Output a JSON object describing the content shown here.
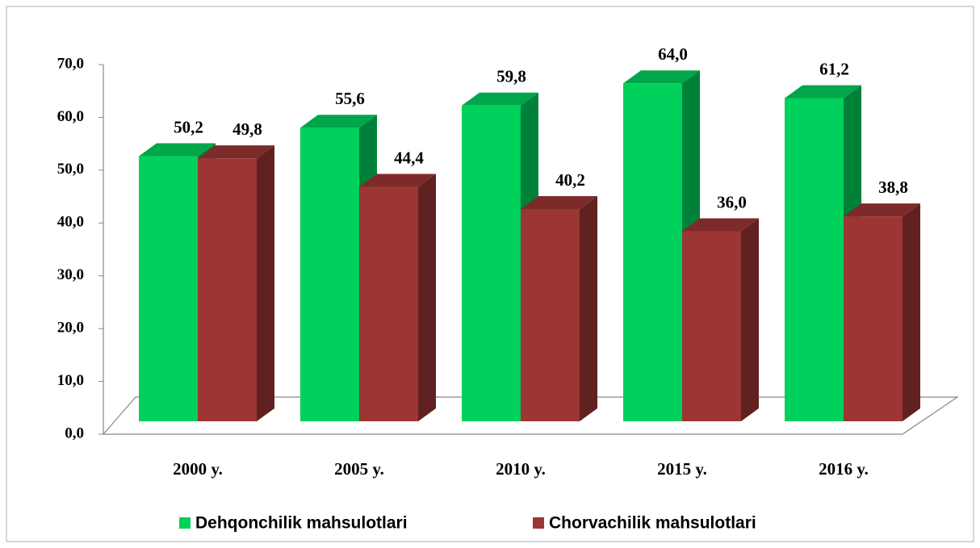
{
  "chart_data": {
    "type": "bar3d",
    "categories": [
      "2000 y.",
      "2005 y.",
      "2010 y.",
      "2015 y.",
      "2016 y."
    ],
    "series": [
      {
        "name": "Dehqonchilik mahsulotlari",
        "color": "#00d05c",
        "values": [
          50.2,
          55.6,
          59.8,
          64.0,
          61.2
        ],
        "value_labels": [
          "50,2",
          "55,6",
          "59,8",
          "64,0",
          "61,2"
        ]
      },
      {
        "name": "Chorvachilik mahsulotlari",
        "color": "#9c3634",
        "values": [
          49.8,
          44.4,
          40.2,
          36.0,
          38.8
        ],
        "value_labels": [
          "49,8",
          "44,4",
          "40,2",
          "36,0",
          "38,8"
        ]
      }
    ],
    "ylim": [
      0,
      70
    ],
    "yticks": [
      {
        "value": 0,
        "label": "0,0"
      },
      {
        "value": 10,
        "label": "10,0"
      },
      {
        "value": 20,
        "label": "20,0"
      },
      {
        "value": 30,
        "label": "30,0"
      },
      {
        "value": 40,
        "label": "40,0"
      },
      {
        "value": 50,
        "label": "50,0"
      },
      {
        "value": 60,
        "label": "60,0"
      },
      {
        "value": 70,
        "label": "70,0"
      }
    ],
    "legend": "bottom"
  }
}
